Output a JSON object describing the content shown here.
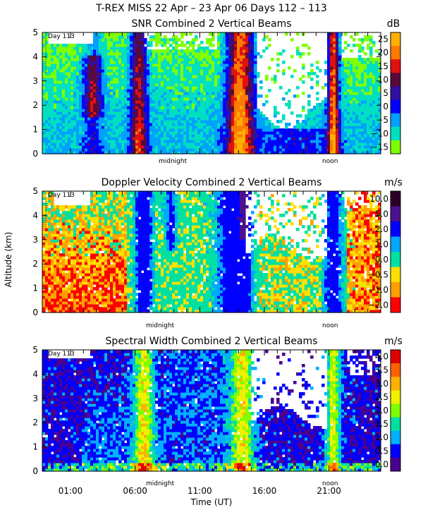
{
  "figure": {
    "title": "T-REX MISS    22 Apr – 23 Apr 06 Days 112 – 113",
    "ylabel": "Altitude (km)",
    "xlabel": "Time (UT)",
    "x_ticks": [
      "01:00",
      "06:00",
      "11:00",
      "16:00",
      "21:00"
    ],
    "day_marker": "Day 113",
    "midnight_label": "midnight",
    "noon_label": "noon"
  },
  "chart_data": [
    {
      "type": "heatmap",
      "title": "SNR Combined 2 Vertical Beams",
      "units": "dB",
      "ylim": [
        0,
        5
      ],
      "y_ticks": [
        "0",
        "1",
        "2",
        "3",
        "4",
        "5"
      ],
      "colorbar": {
        "labels": [
          "25",
          "20",
          "15",
          "10",
          "5",
          "0",
          "−5",
          "−10",
          "−15"
        ],
        "colors": [
          "#ffb000",
          "#ff7a00",
          "#e01010",
          "#5a0a3a",
          "#3010a0",
          "#0000ff",
          "#00a0ff",
          "#00e0c0",
          "#80ff00"
        ]
      }
    },
    {
      "type": "heatmap",
      "title": "Doppler Velocity Combined 2 Vertical Beams",
      "units": "m/s",
      "ylim": [
        0,
        5
      ],
      "y_ticks": [
        "0",
        "1",
        "2",
        "3",
        "4",
        "5"
      ],
      "colorbar": {
        "labels": [
          "10.0",
          "5.0",
          "2.0",
          "1.0",
          "0.0",
          "−0.5",
          "−1.0",
          "−2.0"
        ],
        "colors": [
          "#2a0028",
          "#4b1090",
          "#0000ff",
          "#00a8ff",
          "#00e0a0",
          "#ffe000",
          "#ffa000",
          "#ff0000"
        ]
      }
    },
    {
      "type": "heatmap",
      "title": "Spectral Width Combined 2 Vertical Beams",
      "units": "m/s",
      "ylim": [
        0,
        5
      ],
      "y_ticks": [
        "0",
        "1",
        "2",
        "3",
        "4",
        "5"
      ],
      "colorbar": {
        "labels": [
          "4.0",
          "3.5",
          "3.0",
          "2.5",
          "2.0",
          "1.5",
          "1.0",
          "0.5",
          "0.0"
        ],
        "colors": [
          "#e00000",
          "#ff6000",
          "#ffb000",
          "#f0f000",
          "#80ff00",
          "#00e0a0",
          "#00b0ff",
          "#0000ff",
          "#4b0090"
        ]
      }
    }
  ]
}
